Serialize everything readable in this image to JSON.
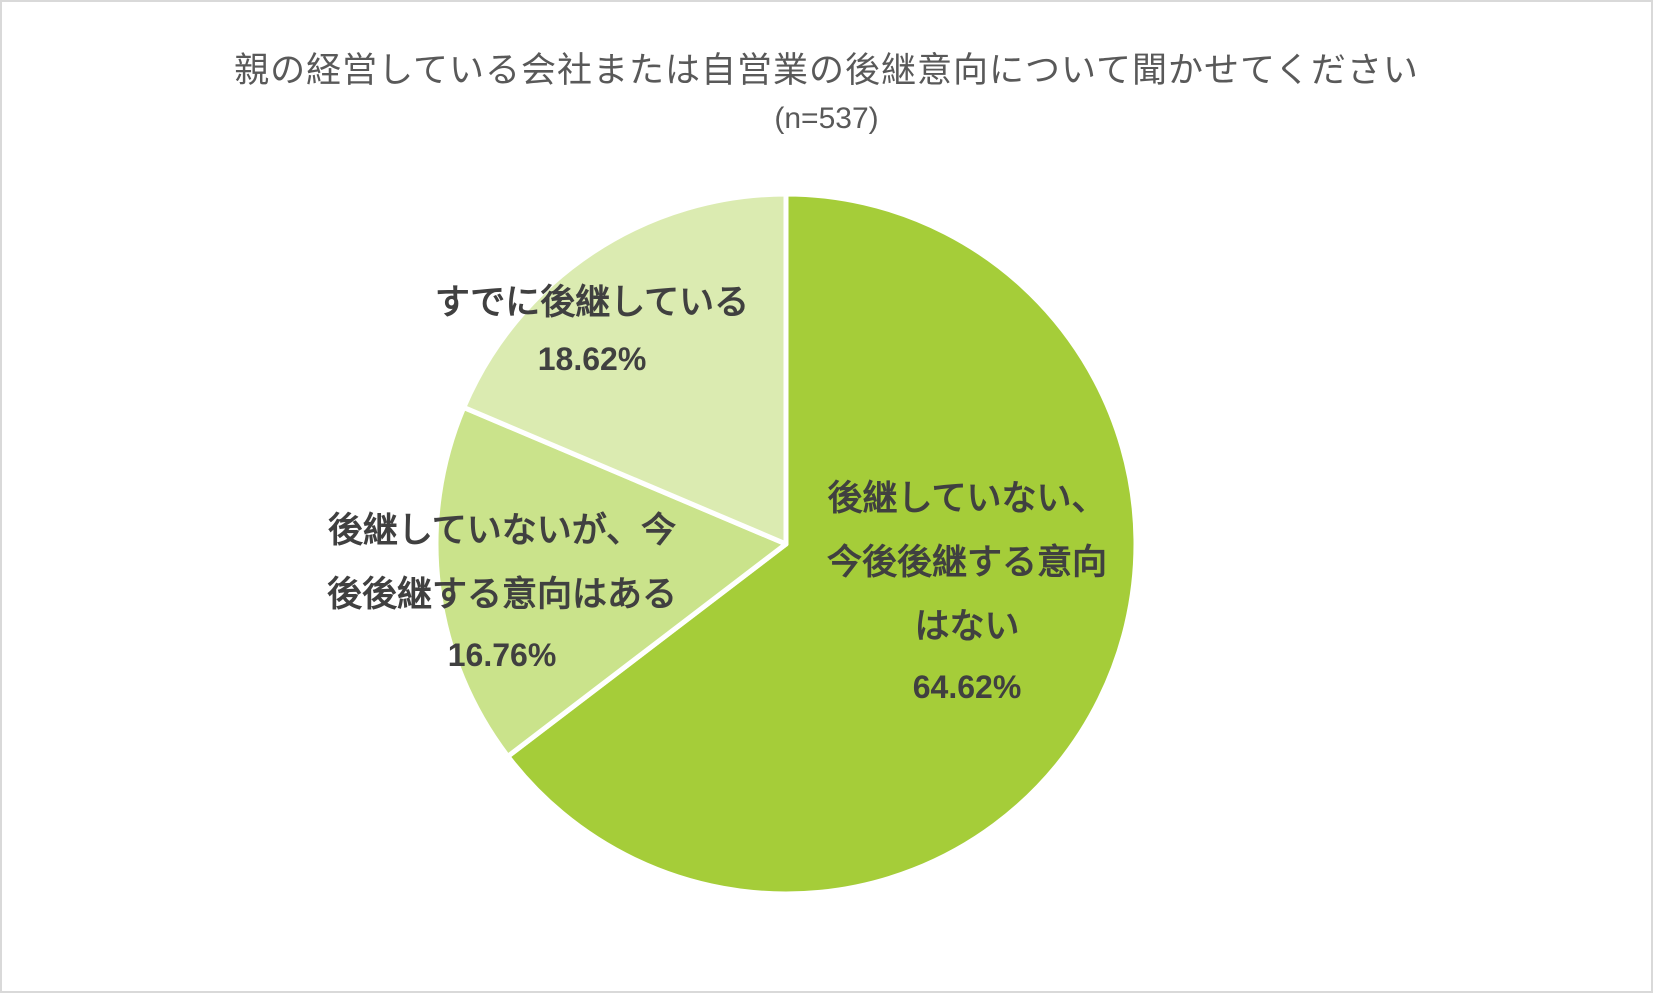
{
  "chart_data": {
    "type": "pie",
    "title": "親の経営している会社または自営業の後継意向について聞かせてください",
    "subtitle": "(n=537)",
    "slices": [
      {
        "label_lines": [
          "後継していない、",
          "今後後継する意向",
          "はない"
        ],
        "value": 64.62,
        "value_label": "64.62%",
        "color": "#a5cd39"
      },
      {
        "label_lines": [
          "後継していないが、今",
          "後後継する意向はある"
        ],
        "value": 16.76,
        "value_label": "16.76%",
        "color": "#cae38b"
      },
      {
        "label_lines": [
          "すでに後継している"
        ],
        "value": 18.62,
        "value_label": "18.62%",
        "color": "#dbebb1"
      }
    ],
    "start": "12 o'clock",
    "direction": "clockwise",
    "legend": "none"
  }
}
